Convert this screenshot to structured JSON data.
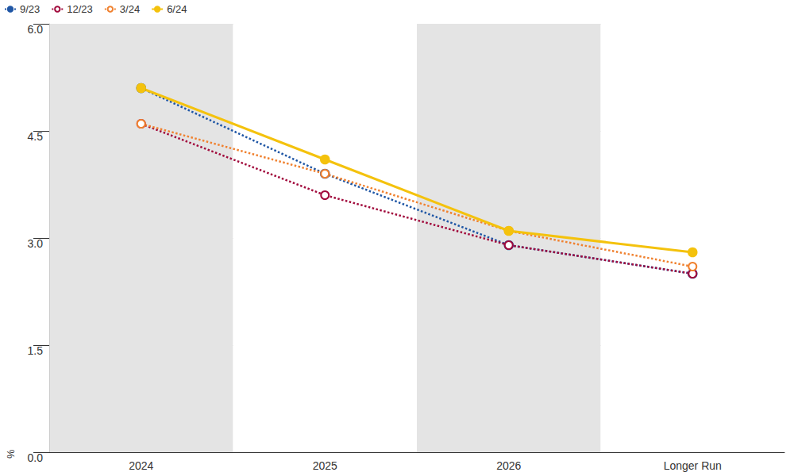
{
  "chart_data": {
    "type": "line",
    "categories": [
      "2024",
      "2025",
      "2026",
      "Longer Run"
    ],
    "y_label": "%",
    "series": [
      {
        "name": "9/23",
        "color": "#1f56a5",
        "values": [
          5.1,
          3.9,
          2.9,
          2.5
        ],
        "marker": "circle",
        "line_style": "dotted"
      },
      {
        "name": "12/23",
        "color": "#a10a3c",
        "values": [
          4.6,
          3.6,
          2.9,
          2.5
        ],
        "marker": "emptyCircle",
        "line_style": "dotted"
      },
      {
        "name": "3/24",
        "color": "#f0812f",
        "values": [
          4.6,
          3.9,
          3.1,
          2.6
        ],
        "marker": "emptyCircle",
        "line_style": "dotted"
      },
      {
        "name": "6/24",
        "color": "#f4c20d",
        "values": [
          5.1,
          4.1,
          3.1,
          2.8
        ],
        "marker": "circle",
        "line_style": "solid"
      }
    ],
    "ylim": [
      0,
      6
    ],
    "yticks": [
      {
        "value": 0,
        "label": "0.0"
      },
      1.5,
      {
        "value": 3,
        "label": "3.0"
      },
      4.5,
      {
        "value": 6,
        "label": "6.0"
      }
    ],
    "grid": true,
    "legend": "top-left"
  }
}
